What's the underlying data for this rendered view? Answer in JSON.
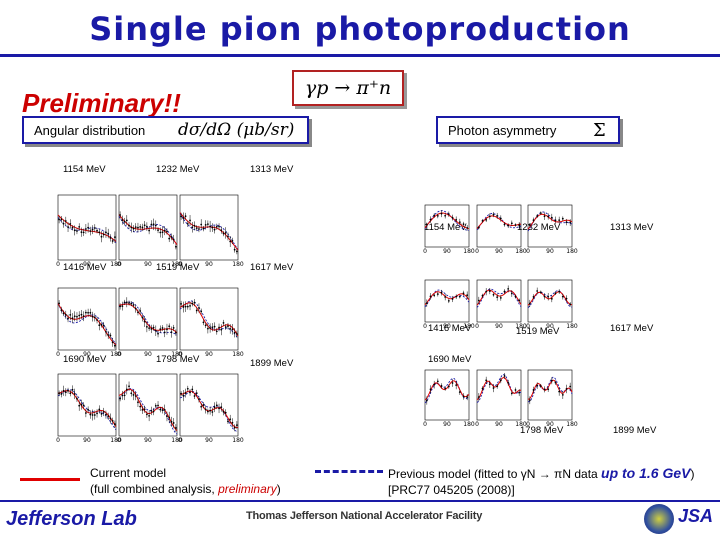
{
  "slide": {
    "title": "Single pion photoproduction",
    "reaction": "γp → π⁺n",
    "preliminary_stamp": "Preliminary!!"
  },
  "angular": {
    "label": "Angular distribution",
    "formula": "dσ/dΩ (μb/sr)",
    "energies": [
      "1154 MeV",
      "1232 MeV",
      "1313 MeV",
      "1416 MeV",
      "1519 MeV",
      "1617 MeV",
      "1690 MeV",
      "1798 MeV",
      "1899 MeV"
    ],
    "axis_ticks": {
      "x": [
        "0",
        "90",
        "180"
      ],
      "x_label": "θ (deg)"
    }
  },
  "asymmetry": {
    "label": "Photon asymmetry",
    "symbol": "Σ",
    "energies": [
      "1154 MeV",
      "1232 MeV",
      "1313 MeV",
      "1416 MeV",
      "1519 MeV",
      "1617 MeV",
      "1690 MeV",
      "1798 MeV",
      "1899 MeV"
    ],
    "axis_ticks": {
      "x": [
        "0",
        "90",
        "180"
      ],
      "x_label": "θ (deg)"
    }
  },
  "legend": {
    "current_line1": "Current model",
    "current_line2_pre": "(full combined analysis, ",
    "current_prelim": "preliminary",
    "current_line2_post": ")",
    "previous_line1_pre": "Previous model (fitted to γN → πN data ",
    "previous_upto": "up to 1.6 GeV",
    "previous_line1_post": ")",
    "previous_line2": "[PRC77 045205 (2008)]"
  },
  "colors": {
    "current": "#e00000",
    "previous": "#1a1aa6",
    "title": "#1a1aa6"
  },
  "footer": {
    "logo": "Jefferson Lab",
    "lab_name": "Thomas Jefferson National Accelerator Facility",
    "jsa": "JSA"
  }
}
